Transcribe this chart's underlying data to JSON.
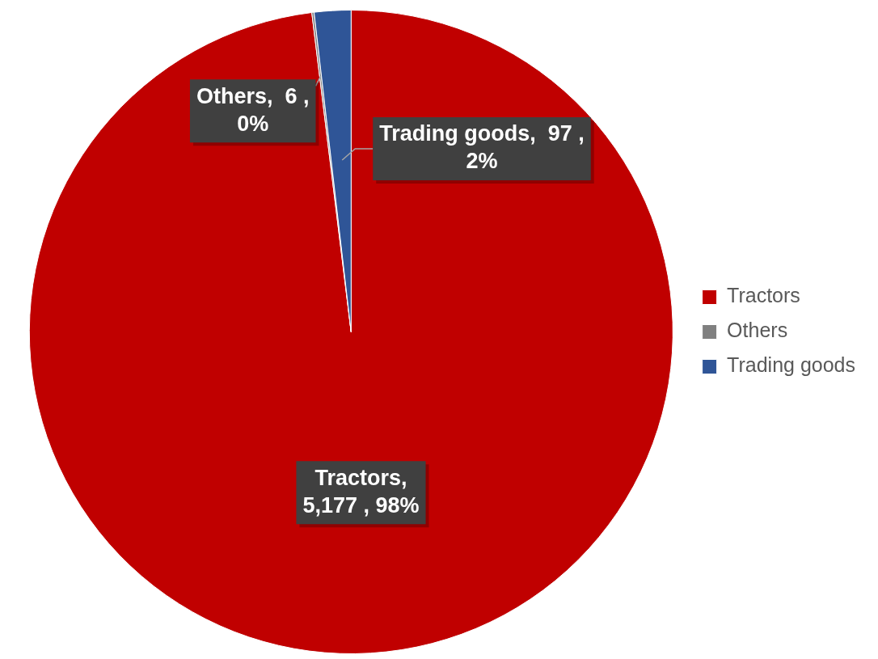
{
  "chart_data": {
    "type": "pie",
    "categories": [
      "Tractors",
      "Others",
      "Trading goods"
    ],
    "values": [
      5177,
      6,
      97
    ],
    "colors": [
      "#c00000",
      "#808080",
      "#2f5597"
    ],
    "value_labels": [
      "Tractors, 5,177 , 98%",
      "Others,  6 , 0%",
      "Trading goods,  97 , 2%"
    ],
    "legend": "right"
  }
}
